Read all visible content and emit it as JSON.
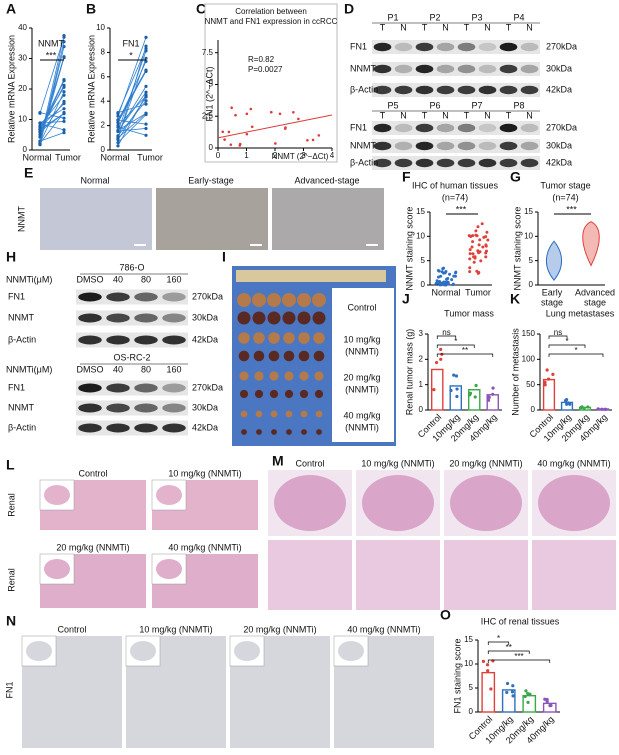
{
  "panels": {
    "A": {
      "label": "A",
      "title": "NNMT",
      "ylabel": "Relative mRNA Expression",
      "ylim": [
        0,
        40
      ],
      "yticks": [
        0,
        10,
        20,
        30,
        40
      ],
      "categories": [
        "Normal",
        "Tumor"
      ],
      "sig": "***"
    },
    "B": {
      "label": "B",
      "title": "FN1",
      "ylabel": "Relative mRNA Expression",
      "ylim": [
        0,
        10
      ],
      "yticks": [
        0,
        2,
        4,
        6,
        8,
        10
      ],
      "categories": [
        "Normal",
        "Tumor"
      ],
      "sig": "*"
    },
    "C": {
      "label": "C",
      "title_lines": [
        "Correlation between",
        "NNMT and FN1 expression in ccRCC"
      ],
      "stats": [
        "R=0.82",
        "P=0.0027"
      ],
      "xlabel": "NNMT (2^−ΔCt)",
      "ylabel": "FN1 (2^−ΔCt)",
      "xlim": [
        0,
        4
      ],
      "xticks": [
        0,
        1,
        2,
        3,
        4
      ],
      "ylim": [
        0,
        8.5
      ],
      "yticks": [
        0,
        2.5,
        5,
        7.5
      ]
    },
    "D": {
      "label": "D",
      "patients": [
        "P1",
        "P2",
        "P3",
        "P4",
        "P5",
        "P6",
        "P7",
        "P8"
      ],
      "lanes": [
        "T",
        "N"
      ],
      "proteins": [
        "FN1",
        "NNMT",
        "β-Actin"
      ],
      "sizes": [
        "270kDa",
        "30kDa",
        "42kDa"
      ]
    },
    "E": {
      "label": "E",
      "columns": [
        "Normal",
        "Early-stage",
        "Advanced-stage"
      ],
      "row_label": "NNMT"
    },
    "F": {
      "label": "F",
      "title": "IHC of human tissues",
      "n": "(n=74)",
      "sig": "***",
      "ylabel": "NNMT staining score",
      "ylim": [
        0,
        15
      ],
      "yticks": [
        0,
        5,
        10,
        15
      ],
      "categories": [
        "Normal",
        "Tumor"
      ]
    },
    "G": {
      "label": "G",
      "title": "Tumor stage",
      "n": "(n=74)",
      "sig": "***",
      "ylabel": "NNMT staining score",
      "ylim": [
        0,
        15
      ],
      "yticks": [
        0,
        5,
        10,
        15
      ],
      "categories": [
        [
          "Early",
          "stage"
        ],
        [
          "Advanced",
          "stage"
        ]
      ]
    },
    "H": {
      "label": "H",
      "blots": [
        {
          "cell_line": "786-O",
          "treatment": "NNMTi(μM)",
          "doses": [
            "DMSO",
            "40",
            "80",
            "160"
          ]
        },
        {
          "cell_line": "OS-RC-2",
          "treatment": "NNMTi(μM)",
          "doses": [
            "DMSO",
            "40",
            "80",
            "160"
          ]
        }
      ],
      "proteins": [
        "FN1",
        "NNMT",
        "β-Actin"
      ],
      "sizes": [
        "270kDa",
        "30kDa",
        "42kDa"
      ]
    },
    "I": {
      "label": "I",
      "groups": [
        "Control",
        "10 mg/kg",
        "20 mg/kg",
        "40 mg/kg"
      ],
      "treatment": "(NNMTi)"
    },
    "J": {
      "label": "J",
      "title": "Tumor mass",
      "ylabel": "Renal tumor mass (g)",
      "ylim": [
        0,
        3
      ],
      "yticks": [
        0,
        1,
        2,
        3
      ],
      "categories": [
        "Control",
        "10mg/kg",
        "20mg/kg",
        "40mg/kg"
      ],
      "values": [
        1.6,
        0.95,
        0.8,
        0.6
      ],
      "colors": [
        "#e0403a",
        "#2e6fc0",
        "#3aa84a",
        "#8a55b8"
      ],
      "sig": [
        "ns",
        "*",
        "**"
      ]
    },
    "K": {
      "label": "K",
      "title": "Lung metastases",
      "ylabel": "Number of metastasis",
      "ylim": [
        0,
        150
      ],
      "yticks": [
        0,
        50,
        100,
        150
      ],
      "categories": [
        "Control",
        "10mg/kg",
        "20mg/kg",
        "40mg/kg"
      ],
      "values": [
        60,
        15,
        5,
        2
      ],
      "colors": [
        "#e0403a",
        "#2e6fc0",
        "#3aa84a",
        "#8a55b8"
      ],
      "sig": [
        "ns",
        "*",
        "*"
      ]
    },
    "L": {
      "label": "L",
      "groups": [
        "Control",
        "10 mg/kg (NNMTi)",
        "20 mg/kg (NNMTi)",
        "40 mg/kg (NNMTi)"
      ],
      "row_label": "Renal"
    },
    "M": {
      "label": "M",
      "groups": [
        "Control",
        "10 mg/kg (NNMTi)",
        "20 mg/kg (NNMTi)",
        "40 mg/kg (NNMTi)"
      ]
    },
    "N": {
      "label": "N",
      "groups": [
        "Control",
        "10 mg/kg (NNMTi)",
        "20 mg/kg (NNMTi)",
        "40 mg/kg (NNMTi)"
      ],
      "row_label": "FN1"
    },
    "O": {
      "label": "O",
      "title": "IHC of  renal tissues",
      "ylabel": "FN1 staining score",
      "ylim": [
        0,
        15
      ],
      "yticks": [
        0,
        5,
        10,
        15
      ],
      "categories": [
        "Control",
        "10mg/kg",
        "20mg/kg",
        "40mg/kg"
      ],
      "values": [
        8.2,
        4.6,
        3.4,
        1.8
      ],
      "colors": [
        "#e0403a",
        "#2e6fc0",
        "#3aa84a",
        "#8a55b8"
      ],
      "sig": [
        "*",
        "**",
        "***"
      ]
    }
  }
}
